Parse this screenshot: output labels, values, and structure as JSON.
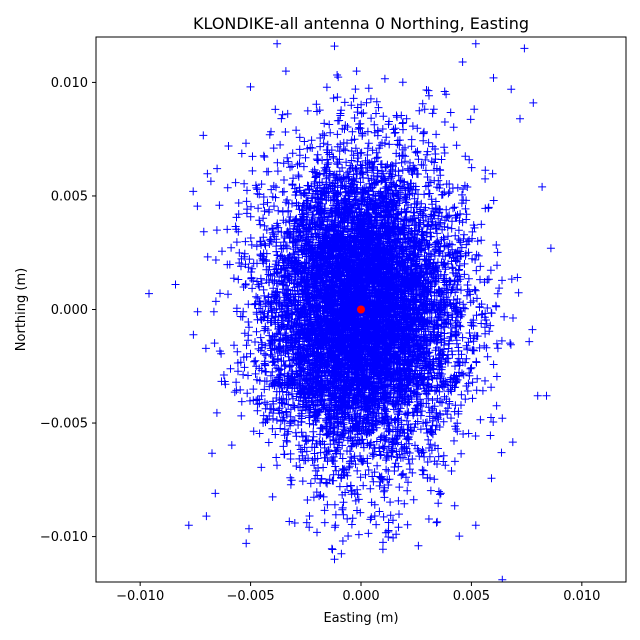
{
  "chart_data": {
    "type": "scatter",
    "title": "KLONDIKE-all antenna 0 Northing, Easting",
    "xlabel": "Easting (m)",
    "ylabel": "Northing (m)",
    "xlim": [
      -0.012,
      0.012
    ],
    "ylim": [
      -0.012,
      0.012
    ],
    "xticks": [
      -0.01,
      -0.005,
      0.0,
      0.005,
      0.01
    ],
    "xtick_labels": [
      "−0.010",
      "−0.005",
      "0.000",
      "0.005",
      "0.010"
    ],
    "yticks": [
      -0.01,
      -0.005,
      0.0,
      0.005,
      0.01
    ],
    "ytick_labels": [
      "−0.010",
      "−0.005",
      "0.000",
      "0.005",
      "0.010"
    ],
    "grid": false,
    "series": [
      {
        "marker": "plus",
        "color": "#0000ff",
        "distribution": {
          "mean_x": 0.0,
          "mean_y": 0.0,
          "std_x": 0.0022,
          "std_y": 0.0033,
          "count": 9000,
          "seed": 12345
        },
        "outliers": [
          {
            "x": -0.0096,
            "y": 0.0007
          },
          {
            "x": -0.0084,
            "y": 0.0011
          },
          {
            "x": -0.0078,
            "y": -0.0095
          },
          {
            "x": -0.0076,
            "y": 0.0052
          },
          {
            "x": -0.0074,
            "y": -0.0001
          },
          {
            "x": -0.007,
            "y": -0.0091
          },
          {
            "x": -0.0066,
            "y": -0.0081
          },
          {
            "x": -0.006,
            "y": 0.0072
          },
          {
            "x": -0.0052,
            "y": -0.0103
          },
          {
            "x": -0.0038,
            "y": 0.0117
          },
          {
            "x": -0.0034,
            "y": 0.0105
          },
          {
            "x": -0.003,
            "y": -0.0094
          },
          {
            "x": -0.0012,
            "y": 0.0116
          },
          {
            "x": -0.0012,
            "y": -0.011
          },
          {
            "x": -0.0002,
            "y": 0.0105
          },
          {
            "x": 0.0026,
            "y": -0.0104
          },
          {
            "x": 0.0046,
            "y": 0.0109
          },
          {
            "x": 0.0052,
            "y": -0.0095
          },
          {
            "x": 0.0052,
            "y": 0.0117
          },
          {
            "x": 0.006,
            "y": 0.0102
          },
          {
            "x": 0.0064,
            "y": -0.0119
          },
          {
            "x": 0.0068,
            "y": 0.0097
          },
          {
            "x": 0.0072,
            "y": 0.0084
          },
          {
            "x": 0.0074,
            "y": 0.0115
          },
          {
            "x": 0.0078,
            "y": 0.0091
          },
          {
            "x": 0.008,
            "y": -0.0038
          },
          {
            "x": 0.0082,
            "y": 0.0054
          },
          {
            "x": 0.0086,
            "y": 0.0027
          },
          {
            "x": 0.0084,
            "y": -0.0038
          }
        ]
      },
      {
        "marker": "circle",
        "color": "#ff0000",
        "points": [
          {
            "x": 0.0,
            "y": 0.0
          }
        ]
      }
    ]
  }
}
